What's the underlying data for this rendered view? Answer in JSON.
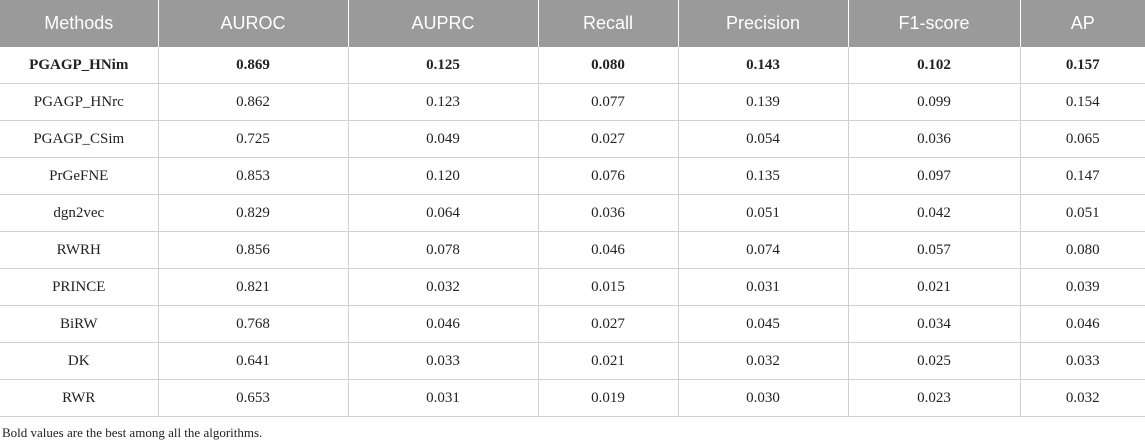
{
  "table": {
    "headers": [
      "Methods",
      "AUROC",
      "AUPRC",
      "Recall",
      "Precision",
      "F1-score",
      "AP"
    ],
    "rows": [
      [
        "PGAGP_HNim",
        "0.869",
        "0.125",
        "0.080",
        "0.143",
        "0.102",
        "0.157"
      ],
      [
        "PGAGP_HNrc",
        "0.862",
        "0.123",
        "0.077",
        "0.139",
        "0.099",
        "0.154"
      ],
      [
        "PGAGP_CSim",
        "0.725",
        "0.049",
        "0.027",
        "0.054",
        "0.036",
        "0.065"
      ],
      [
        "PrGeFNE",
        "0.853",
        "0.120",
        "0.076",
        "0.135",
        "0.097",
        "0.147"
      ],
      [
        "dgn2vec",
        "0.829",
        "0.064",
        "0.036",
        "0.051",
        "0.042",
        "0.051"
      ],
      [
        "RWRH",
        "0.856",
        "0.078",
        "0.046",
        "0.074",
        "0.057",
        "0.080"
      ],
      [
        "PRINCE",
        "0.821",
        "0.032",
        "0.015",
        "0.031",
        "0.021",
        "0.039"
      ],
      [
        "BiRW",
        "0.768",
        "0.046",
        "0.027",
        "0.045",
        "0.034",
        "0.046"
      ],
      [
        "DK",
        "0.641",
        "0.033",
        "0.021",
        "0.032",
        "0.025",
        "0.033"
      ],
      [
        "RWR",
        "0.653",
        "0.031",
        "0.019",
        "0.030",
        "0.023",
        "0.032"
      ]
    ]
  },
  "footnote": "Bold values are the best among all the algorithms."
}
